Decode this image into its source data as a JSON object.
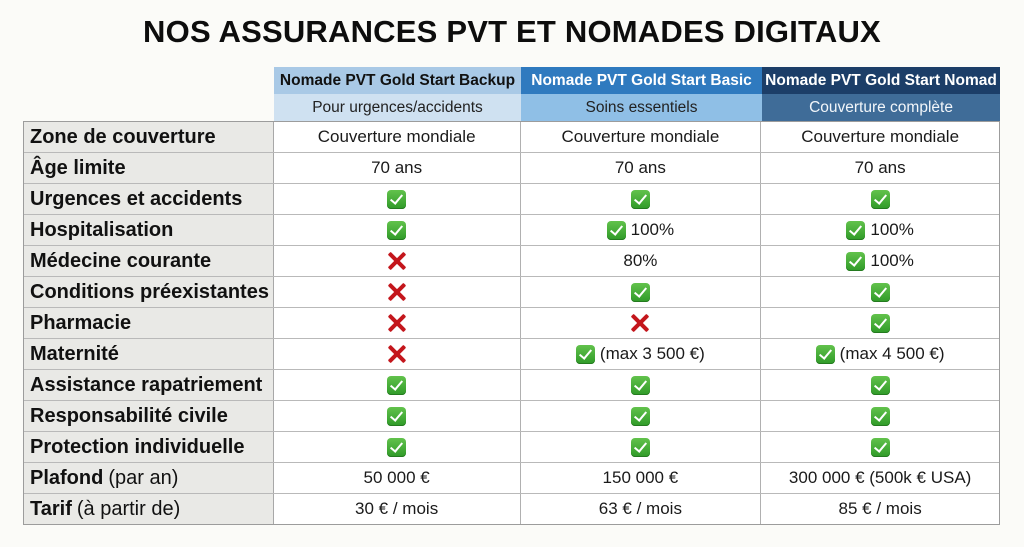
{
  "title": "NOS ASSURANCES PVT ET NOMADES DIGITAUX",
  "plans": [
    {
      "name": "Nomade PVT Gold Start Backup",
      "subtitle": "Pour urgences/accidents",
      "color": "#a9c9e6"
    },
    {
      "name": "Nomade PVT Gold Start Basic",
      "subtitle": "Soins essentiels",
      "color": "#2f7abf"
    },
    {
      "name": "Nomade PVT Gold Start Nomad",
      "subtitle": "Couverture complète",
      "color": "#1c3e68"
    }
  ],
  "rows": [
    {
      "label": "Zone de couverture",
      "note": "",
      "values": [
        {
          "icon": "",
          "text": "Couverture mondiale"
        },
        {
          "icon": "",
          "text": "Couverture mondiale"
        },
        {
          "icon": "",
          "text": "Couverture mondiale"
        }
      ]
    },
    {
      "label": "Âge limite",
      "note": "",
      "values": [
        {
          "icon": "",
          "text": "70 ans"
        },
        {
          "icon": "",
          "text": "70 ans"
        },
        {
          "icon": "",
          "text": "70 ans"
        }
      ]
    },
    {
      "label": "Urgences et accidents",
      "note": "",
      "values": [
        {
          "icon": "check",
          "text": ""
        },
        {
          "icon": "check",
          "text": ""
        },
        {
          "icon": "check",
          "text": ""
        }
      ]
    },
    {
      "label": "Hospitalisation",
      "note": "",
      "values": [
        {
          "icon": "check",
          "text": ""
        },
        {
          "icon": "check",
          "text": "100%"
        },
        {
          "icon": "check",
          "text": "100%"
        }
      ]
    },
    {
      "label": "Médecine courante",
      "note": "",
      "values": [
        {
          "icon": "cross",
          "text": ""
        },
        {
          "icon": "",
          "text": "80%"
        },
        {
          "icon": "check",
          "text": "100%"
        }
      ]
    },
    {
      "label": "Conditions préexistantes",
      "note": "",
      "values": [
        {
          "icon": "cross",
          "text": ""
        },
        {
          "icon": "check",
          "text": ""
        },
        {
          "icon": "check",
          "text": ""
        }
      ]
    },
    {
      "label": "Pharmacie",
      "note": "",
      "values": [
        {
          "icon": "cross",
          "text": ""
        },
        {
          "icon": "cross",
          "text": ""
        },
        {
          "icon": "check",
          "text": ""
        }
      ]
    },
    {
      "label": "Maternité",
      "note": "",
      "values": [
        {
          "icon": "cross",
          "text": ""
        },
        {
          "icon": "check",
          "text": "(max 3 500 €)"
        },
        {
          "icon": "check",
          "text": "(max 4 500 €)"
        }
      ]
    },
    {
      "label": "Assistance rapatriement",
      "note": "",
      "values": [
        {
          "icon": "check",
          "text": ""
        },
        {
          "icon": "check",
          "text": ""
        },
        {
          "icon": "check",
          "text": ""
        }
      ]
    },
    {
      "label": "Responsabilité civile",
      "note": "",
      "values": [
        {
          "icon": "check",
          "text": ""
        },
        {
          "icon": "check",
          "text": ""
        },
        {
          "icon": "check",
          "text": ""
        }
      ]
    },
    {
      "label": "Protection individuelle",
      "note": "",
      "values": [
        {
          "icon": "check",
          "text": ""
        },
        {
          "icon": "check",
          "text": ""
        },
        {
          "icon": "check",
          "text": ""
        }
      ]
    },
    {
      "label": "Plafond",
      "note": "(par an)",
      "values": [
        {
          "icon": "",
          "text": "50 000 €"
        },
        {
          "icon": "",
          "text": "150 000 €"
        },
        {
          "icon": "",
          "text": "300 000 € (500k € USA)"
        }
      ]
    },
    {
      "label": "Tarif",
      "note": "(à partir de)",
      "values": [
        {
          "icon": "",
          "text": "30 € / mois"
        },
        {
          "icon": "",
          "text": "63 € / mois"
        },
        {
          "icon": "",
          "text": "85 € / mois"
        }
      ]
    }
  ],
  "colors": {
    "check": "#3fae32",
    "cross": "#c4161c",
    "label_bg": "#e9e9e6"
  }
}
